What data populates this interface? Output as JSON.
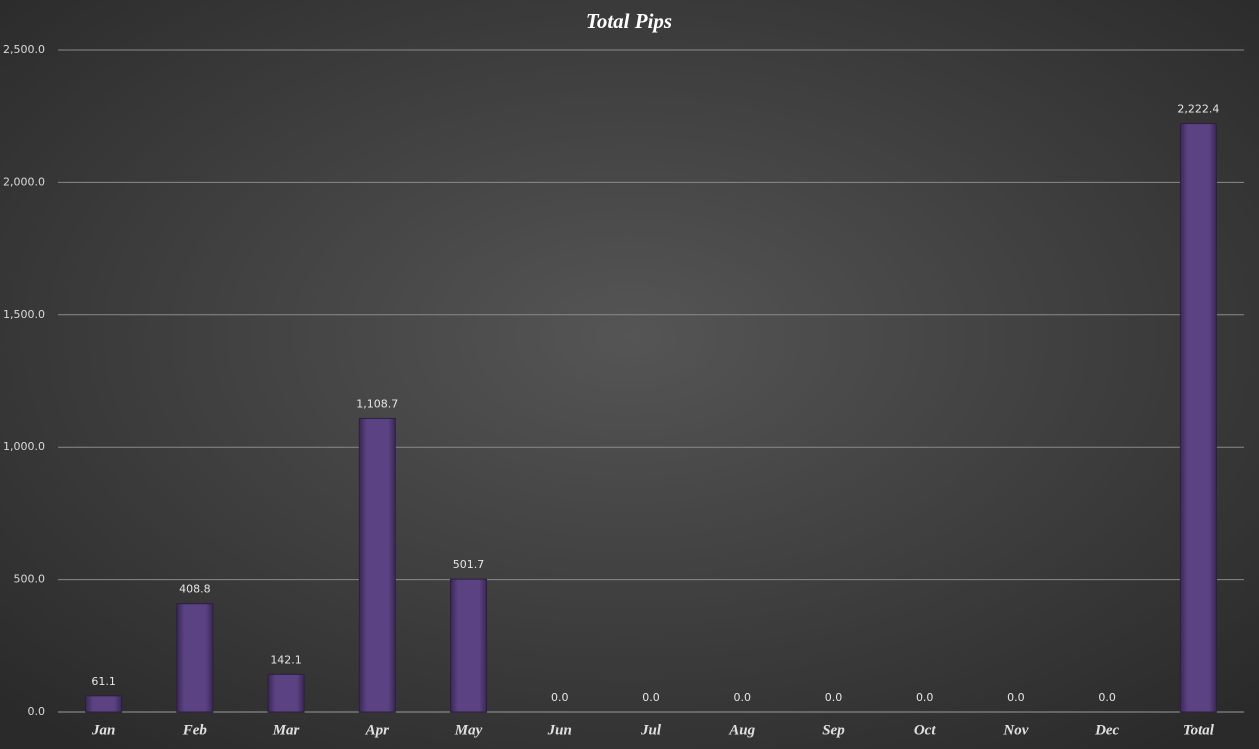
{
  "chart_data": {
    "type": "bar",
    "title": "Total Pips",
    "categories": [
      "Jan",
      "Feb",
      "Mar",
      "Apr",
      "May",
      "Jun",
      "Jul",
      "Aug",
      "Sep",
      "Oct",
      "Nov",
      "Dec",
      "Total"
    ],
    "values": [
      61.1,
      408.8,
      142.1,
      1108.7,
      501.7,
      0,
      0,
      0,
      0,
      0,
      0,
      0,
      2222.4
    ],
    "value_labels": [
      "61.1",
      "408.8",
      "142.1",
      "1,108.7",
      "501.7",
      "0.0",
      "0.0",
      "0.0",
      "0.0",
      "0.0",
      "0.0",
      "0.0",
      "2,222.4"
    ],
    "color": "#57407a",
    "ylim": [
      0,
      2500
    ],
    "yticks": [
      {
        "value": 0,
        "label": "0.0"
      },
      {
        "value": 500,
        "label": "500.0"
      },
      {
        "value": 1000,
        "label": "1,000.0"
      },
      {
        "value": 1500,
        "label": "1,500.0"
      },
      {
        "value": 2000,
        "label": "2,000.0"
      },
      {
        "value": 2500,
        "label": "2,500.0"
      }
    ],
    "grid": true
  }
}
